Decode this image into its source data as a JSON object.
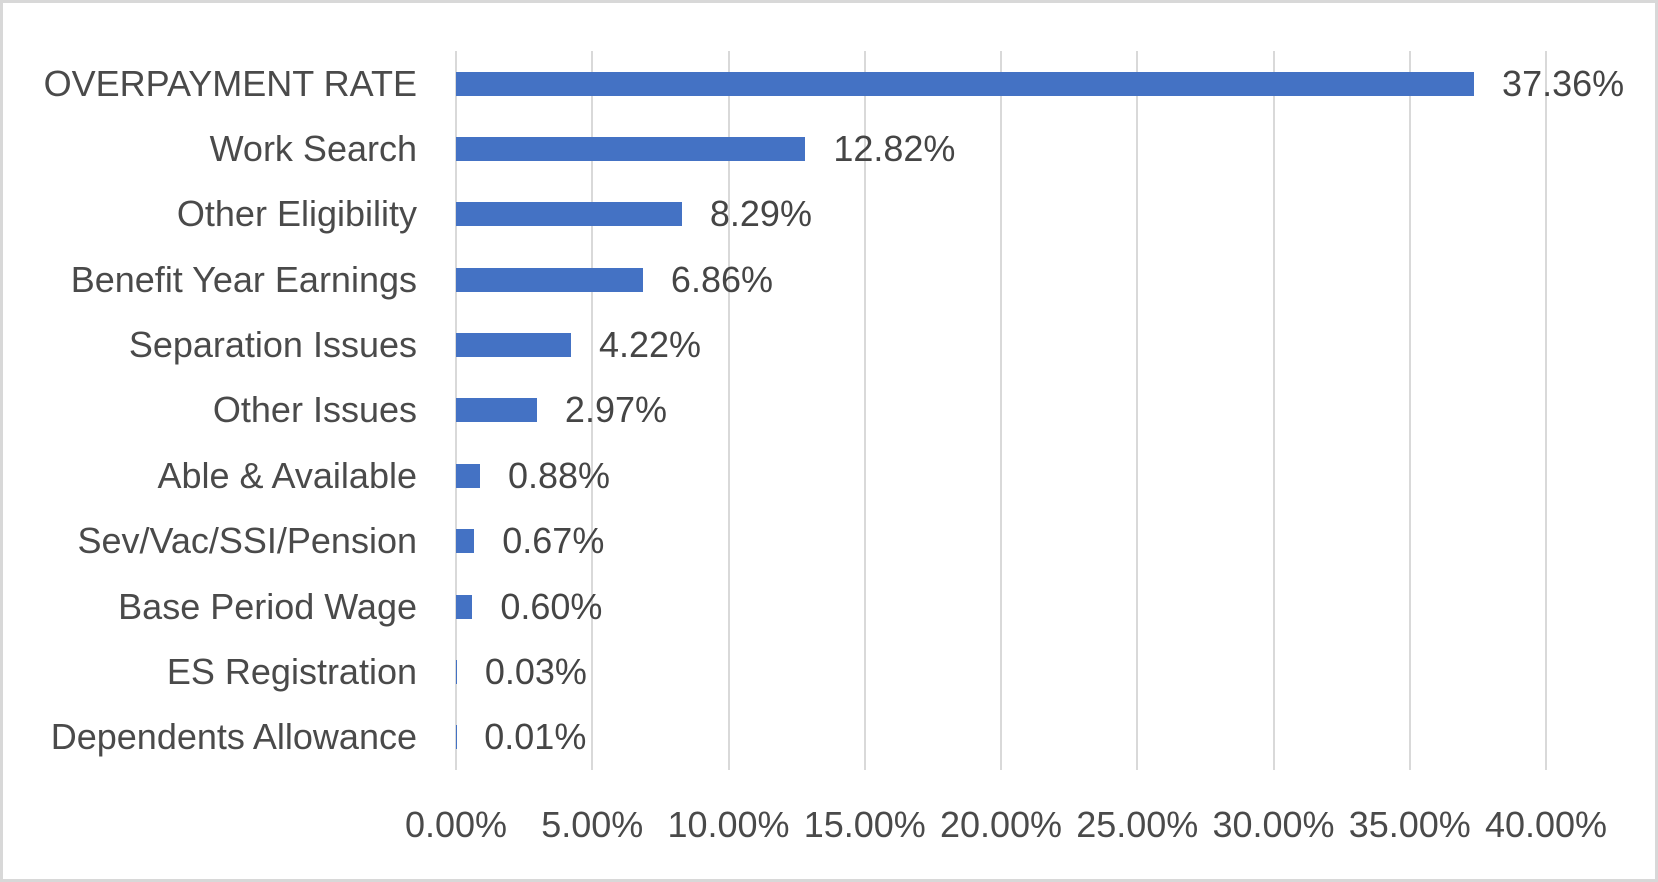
{
  "chart_data": {
    "type": "bar",
    "orientation": "horizontal",
    "title": "",
    "categories": [
      "OVERPAYMENT RATE",
      "Work Search",
      "Other Eligibility",
      "Benefit Year Earnings",
      "Separation Issues",
      "Other Issues",
      "Able & Available",
      "Sev/Vac/SSI/Pension",
      "Base Period Wage",
      "ES Registration",
      "Dependents Allowance"
    ],
    "values": [
      37.36,
      12.82,
      8.29,
      6.86,
      4.22,
      2.97,
      0.88,
      0.67,
      0.6,
      0.03,
      0.01
    ],
    "data_labels": [
      "37.36%",
      "12.82%",
      "8.29%",
      "6.86%",
      "4.22%",
      "2.97%",
      "0.88%",
      "0.67%",
      "0.60%",
      "0.03%",
      "0.01%"
    ],
    "x_tick_labels": [
      "0.00%",
      "5.00%",
      "10.00%",
      "15.00%",
      "20.00%",
      "25.00%",
      "30.00%",
      "35.00%",
      "40.00%"
    ],
    "xlim": [
      0,
      40
    ],
    "x_tick_step": 5,
    "gridlines": "vertical",
    "legend": "none",
    "colors": {
      "bar": "#4472C4",
      "gridline": "#D9D9D9",
      "text": "#4A4A4A",
      "frame_border": "#D8D8D8",
      "background": "#FFFFFF"
    }
  }
}
